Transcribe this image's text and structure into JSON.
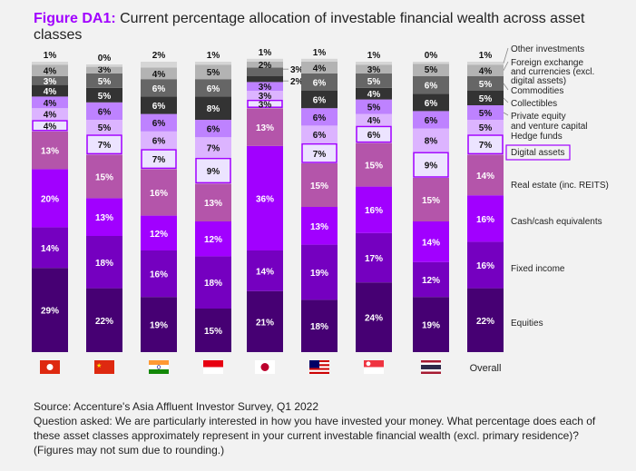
{
  "chart_data": {
    "type": "stacked-bar",
    "title_prefix": "Figure DA1:",
    "title": "Current percentage allocation of investable financial wealth across asset classes",
    "unit": "%",
    "categories": [
      "Hong Kong",
      "China",
      "India",
      "Indonesia",
      "Japan",
      "Malaysia",
      "Singapore",
      "Thailand",
      "Overall"
    ],
    "category_icons": [
      "flag-hong-kong",
      "flag-china",
      "flag-india",
      "flag-indonesia",
      "flag-japan",
      "flag-malaysia",
      "flag-singapore",
      "flag-thailand",
      ""
    ],
    "category_labels": [
      "",
      "",
      "",
      "",
      "",
      "",
      "",
      "",
      "Overall"
    ],
    "series": [
      {
        "name": "Equities",
        "color": "#460073",
        "values": [
          29,
          22,
          19,
          15,
          21,
          18,
          24,
          19,
          22
        ]
      },
      {
        "name": "Fixed income",
        "color": "#7500c0",
        "values": [
          14,
          18,
          16,
          18,
          14,
          19,
          17,
          12,
          16
        ]
      },
      {
        "name": "Cash/cash equivalents",
        "color": "#a100ff",
        "values": [
          20,
          13,
          12,
          12,
          36,
          13,
          16,
          14,
          16
        ]
      },
      {
        "name": "Real estate (inc. REITS)",
        "color": "#b455aa",
        "values": [
          13,
          15,
          16,
          13,
          13,
          15,
          15,
          15,
          14
        ]
      },
      {
        "name": "Digital assets",
        "color": "#ece4ff",
        "border": "#a100ff",
        "values": [
          4,
          7,
          7,
          9,
          3,
          7,
          6,
          9,
          7
        ]
      },
      {
        "name": "Hedge funds",
        "color": "#dcb4ff",
        "values": [
          4,
          5,
          6,
          7,
          3,
          6,
          4,
          8,
          5
        ]
      },
      {
        "name": "Private equity and venture capital",
        "color": "#be82ff",
        "values": [
          4,
          6,
          6,
          6,
          3,
          6,
          5,
          6,
          5
        ]
      },
      {
        "name": "Collectibles",
        "color": "#333333",
        "values": [
          4,
          5,
          6,
          8,
          2,
          6,
          4,
          6,
          5
        ]
      },
      {
        "name": "Commodities",
        "color": "#666666",
        "values": [
          3,
          5,
          6,
          6,
          3,
          6,
          5,
          6,
          5
        ]
      },
      {
        "name": "Foreign exchange and currencies (excl. digital assets)",
        "color": "#b3b3b3",
        "values": [
          4,
          3,
          4,
          5,
          2,
          4,
          3,
          5,
          4
        ]
      },
      {
        "name": "Other investments",
        "color": "#d6d6d6",
        "values": [
          1,
          0,
          2,
          1,
          1,
          1,
          1,
          0,
          1
        ]
      }
    ]
  },
  "source": "Source: Accenture's Asia Affluent Investor Survey, Q1 2022",
  "question": "Question asked: We are particularly interested in how you have invested your money. What percentage does each of these asset classes approximately represent in your current investable financial wealth (excl. primary residence)?",
  "note": "(Figures may not sum due to rounding.)"
}
